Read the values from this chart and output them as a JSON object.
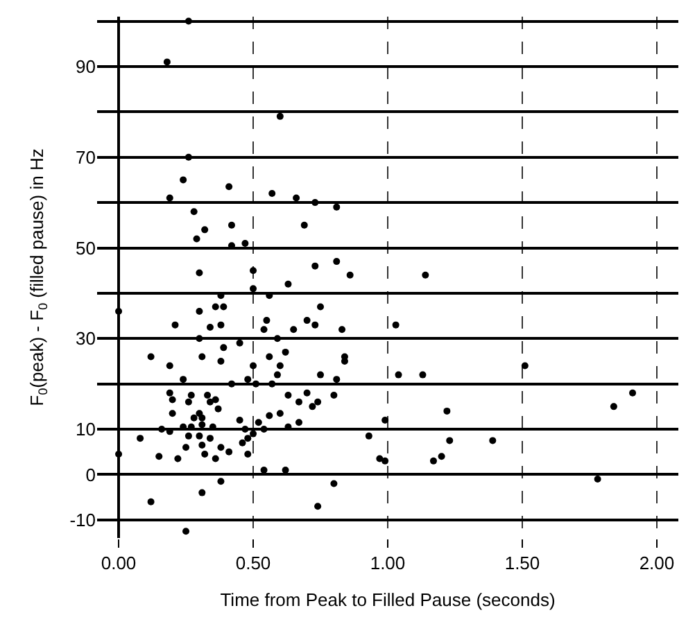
{
  "chart_data": {
    "type": "scatter",
    "xlabel": "Time from Peak to Filled Pause (seconds)",
    "ylabel": "F$_{0}$(peak) - F$_{0}$ (filled pause) in Hz",
    "xlim": [
      -0.08,
      2.08
    ],
    "ylim": [
      -14,
      101
    ],
    "xticks": [
      {
        "value": 0,
        "label": "0.00"
      },
      {
        "value": 0.5,
        "label": "0.50"
      },
      {
        "value": 1,
        "label": "1.00"
      },
      {
        "value": 1.5,
        "label": "1.50"
      },
      {
        "value": 2,
        "label": "2.00"
      }
    ],
    "yticks": [
      -10,
      0,
      10,
      {
        "value": 20,
        "label": null
      },
      30,
      {
        "value": 40,
        "label": null
      },
      50,
      {
        "value": 60,
        "label": null
      },
      70,
      {
        "value": 80,
        "label": null
      },
      90,
      {
        "value": 100,
        "label": null
      }
    ],
    "grid": true,
    "marker": "circle",
    "series": [
      {
        "color": "#000000",
        "x": [
          0.26,
          0.18,
          0.6,
          0.26,
          0.24,
          0.41,
          0.19,
          0.57,
          0.66,
          0.73,
          0.81,
          0.28,
          0.42,
          0.32,
          0.69,
          0.29,
          0.42,
          0.47,
          0.3,
          0.5,
          0.73,
          0.81,
          0.86,
          0.38,
          0.5,
          0.56,
          0.63,
          0.3,
          0.36,
          0.39,
          0.75,
          0.21,
          0.34,
          0.38,
          0.55,
          0.7,
          0.73,
          0.54,
          0.65,
          0.83,
          0.3,
          0.45,
          0.59,
          0.39,
          0.12,
          0.31,
          0.38,
          0.56,
          0.62,
          0.84,
          0.19,
          0.5,
          0.6,
          0.59,
          0.84,
          0.24,
          0.42,
          0.48,
          0.51,
          0.57,
          0.75,
          0.81,
          0.19,
          0.27,
          0.33,
          0.36,
          0.2,
          0.26,
          0.34,
          0.63,
          0.7,
          0.8,
          0.67,
          0.74,
          0.72,
          0.2,
          0.3,
          0.37,
          0.45,
          0.56,
          0.6,
          0.28,
          0.31,
          0.52,
          0.63,
          0.67,
          0.16,
          0.19,
          0.24,
          0.27,
          0.31,
          0.35,
          0.26,
          0.3,
          0.34,
          0.47,
          0.54,
          0.5,
          0.48,
          0.08,
          0.25,
          0.31,
          0.38,
          0.46,
          0.15,
          0.22,
          0.32,
          0.36,
          0.41,
          0.48,
          0.0,
          0.0,
          0.54,
          0.62,
          0.38,
          0.31,
          0.8,
          0.12,
          0.74,
          0.25,
          0.93,
          1.14,
          1.03,
          1.04,
          1.13,
          1.51,
          1.91,
          1.84,
          1.22,
          0.99,
          1.23,
          1.39,
          0.97,
          0.99,
          1.17,
          1.2,
          1.78
        ],
        "values": [
          100,
          91,
          79,
          70,
          65,
          63.5,
          61,
          62,
          61,
          60,
          59,
          58,
          55,
          54,
          55,
          52,
          50.5,
          51,
          44.5,
          45,
          46,
          47,
          44,
          39.5,
          41,
          39.5,
          42,
          36,
          37,
          37,
          37,
          33,
          32.5,
          33,
          34,
          34,
          33,
          32,
          32,
          32,
          30,
          29,
          30,
          28,
          26,
          26,
          25,
          26,
          27,
          26,
          24,
          24,
          24,
          22,
          25,
          21,
          20,
          21,
          20,
          20,
          22,
          21,
          18,
          17.5,
          17.5,
          16.5,
          16.5,
          16,
          16,
          17.5,
          18,
          17.5,
          16,
          16,
          15,
          13.5,
          13.5,
          14.5,
          12,
          13,
          13.5,
          12.5,
          12.5,
          11.5,
          10.5,
          11.5,
          10,
          9.5,
          10.5,
          10.5,
          11,
          10.5,
          8.5,
          8.5,
          8,
          10,
          10,
          9,
          8,
          8,
          6,
          6.5,
          6,
          7,
          4,
          3.5,
          4.5,
          3.5,
          5,
          4.5,
          4.5,
          36,
          1,
          1,
          -1.5,
          -4,
          -2,
          -6,
          -7,
          -12.5,
          8.5,
          44,
          33,
          22,
          22,
          24,
          18,
          15,
          14,
          12,
          7.5,
          7.5,
          3.5,
          3,
          3,
          4,
          -1
        ]
      }
    ]
  }
}
